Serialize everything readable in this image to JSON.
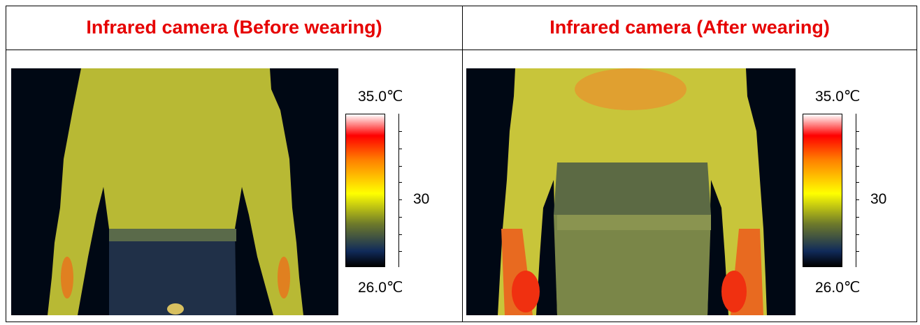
{
  "panels": [
    {
      "title": "Infrared camera (Before wearing)",
      "scale_max": "35.0℃",
      "scale_mid": "30",
      "scale_min": "26.0℃"
    },
    {
      "title": "Infrared camera (After wearing)",
      "scale_max": "35.0℃",
      "scale_mid": "30",
      "scale_min": "26.0℃"
    }
  ],
  "colors": {
    "title": "#e60000",
    "background": "#000814"
  },
  "colorbar": [
    "#ffffff",
    "#ff0000",
    "#ff8000",
    "#ffff00",
    "#6e7a2a",
    "#102a5a",
    "#000000"
  ]
}
